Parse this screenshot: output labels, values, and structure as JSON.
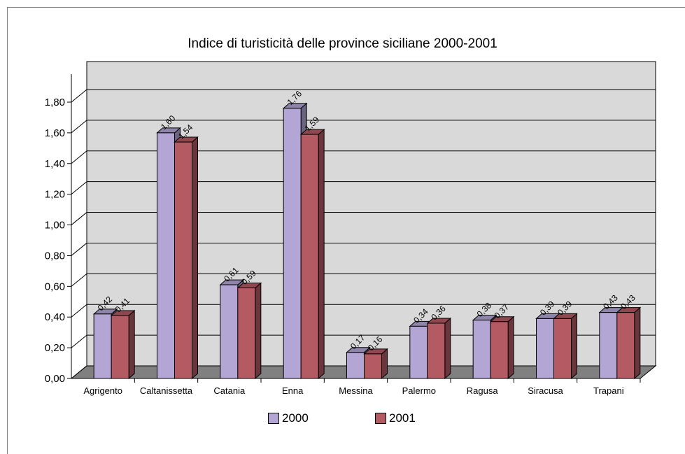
{
  "chart_data": {
    "type": "bar",
    "title": "Indice di turisticità delle province siciliane 2000-2001",
    "categories": [
      "Agrigento",
      "Caltanissetta",
      "Catania",
      "Enna",
      "Messina",
      "Palermo",
      "Ragusa",
      "Siracusa",
      "Trapani"
    ],
    "series": [
      {
        "name": "2000",
        "values": [
          0.42,
          1.6,
          0.61,
          1.76,
          0.17,
          0.34,
          0.38,
          0.39,
          0.43
        ],
        "labels": [
          "0,42",
          "1,60",
          "0,61",
          "1,76",
          "0,17",
          "0,34",
          "0,38",
          "0,39",
          "0,43"
        ],
        "color": "#b3a6d4"
      },
      {
        "name": "2001",
        "values": [
          0.41,
          1.54,
          0.59,
          1.59,
          0.16,
          0.36,
          0.37,
          0.39,
          0.43
        ],
        "labels": [
          "0,41",
          "1,54",
          "0,59",
          "1,59",
          "0,16",
          "0,36",
          "0,37",
          "0,39",
          "0,43"
        ],
        "color": "#b35a63"
      }
    ],
    "yticks": [
      "0,00",
      "0,20",
      "0,40",
      "0,60",
      "0,80",
      "1,00",
      "1,20",
      "1,40",
      "1,60",
      "1,80"
    ],
    "ylim": [
      0,
      1.8
    ],
    "grid": true,
    "legend_position": "bottom",
    "wall_color": "#d9d9d9",
    "floor_color": "#808080"
  },
  "legend": {
    "item1": "2000",
    "item2": "2001"
  }
}
